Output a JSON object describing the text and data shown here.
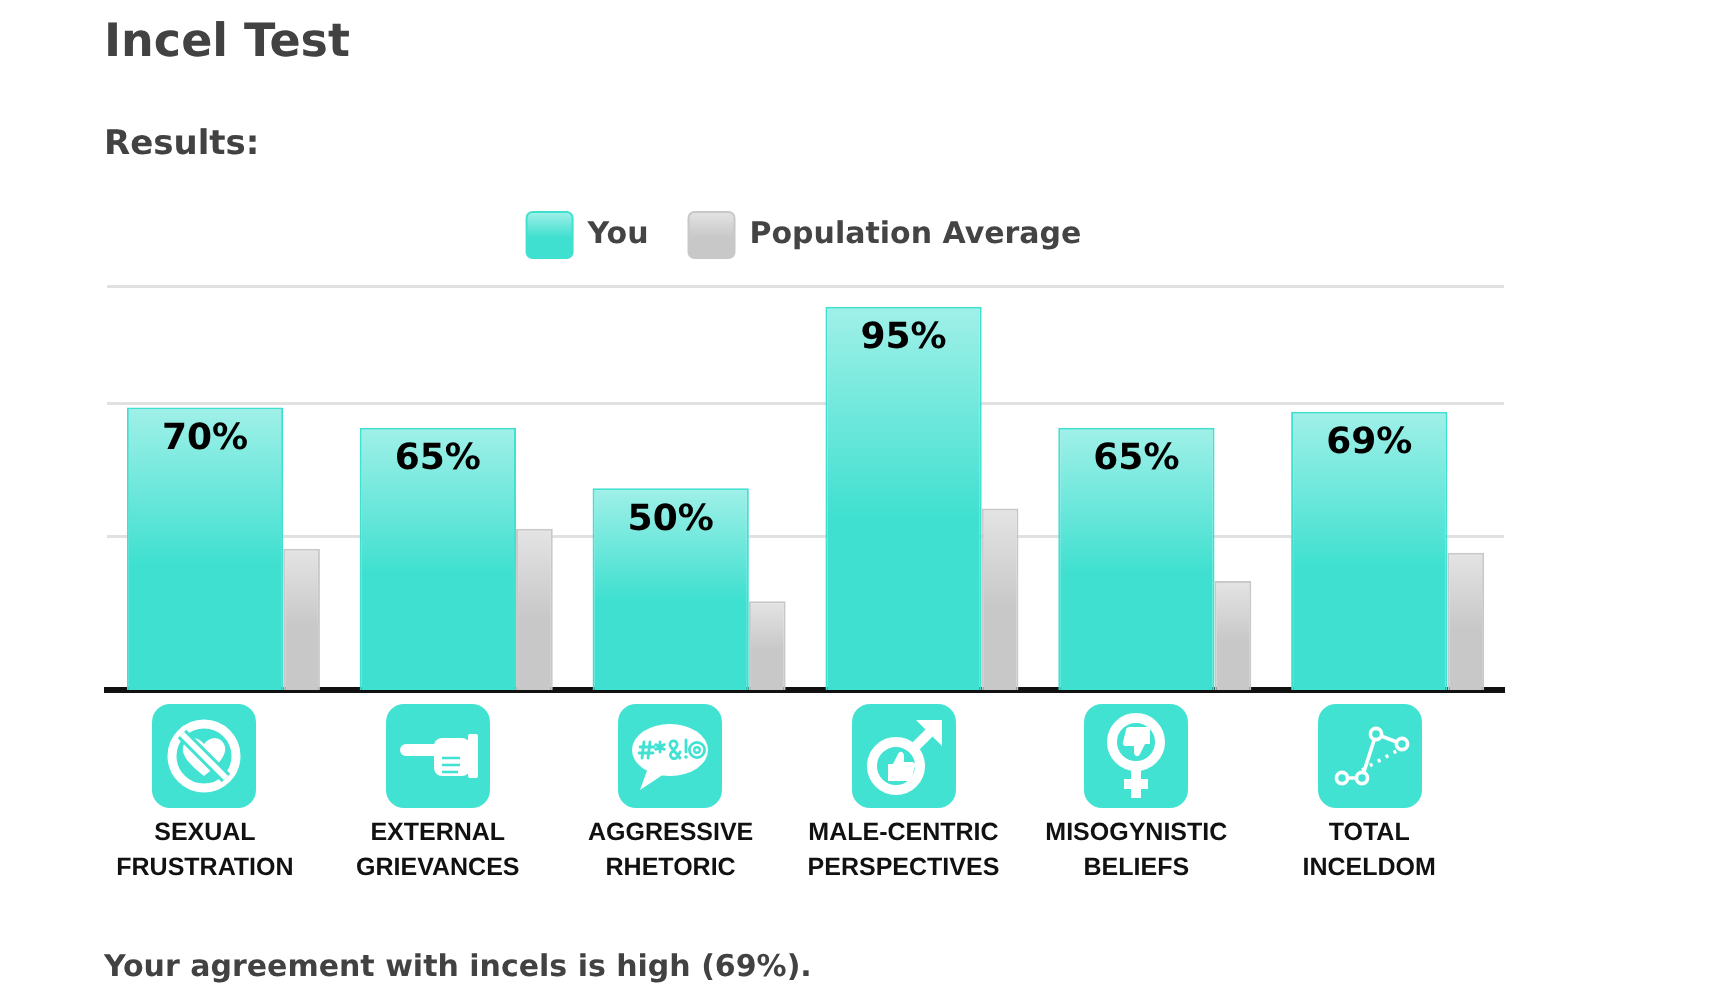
{
  "chart_data": {
    "type": "bar",
    "title": "Incel Test",
    "subtitle": "Results:",
    "categories": [
      "SEXUAL FRUSTRATION",
      "EXTERNAL GRIEVANCES",
      "AGGRESSIVE RHETORIC",
      "MALE-CENTRIC PERSPECTIVES",
      "MISOGYNISTIC BELIEFS",
      "TOTAL INCELDOM"
    ],
    "series": [
      {
        "name": "You",
        "color": "#40e0d0",
        "values": [
          70,
          65,
          50,
          95,
          65,
          69
        ],
        "value_labels": [
          "70%",
          "65%",
          "50%",
          "95%",
          "65%",
          "69%"
        ]
      },
      {
        "name": "Population Average",
        "color": "#c8c8c8",
        "values": [
          35,
          40,
          22,
          45,
          27,
          34
        ]
      }
    ],
    "ylim": [
      0,
      100
    ],
    "yticks": [
      {
        "value": 38,
        "label": null
      },
      {
        "value": 71,
        "label": null
      },
      {
        "value": 100,
        "label": null
      }
    ],
    "grid": "y",
    "legend": "top",
    "tick_labels": "x",
    "annotations": [
      "Your agreement with incels is high (69%)."
    ]
  }
}
